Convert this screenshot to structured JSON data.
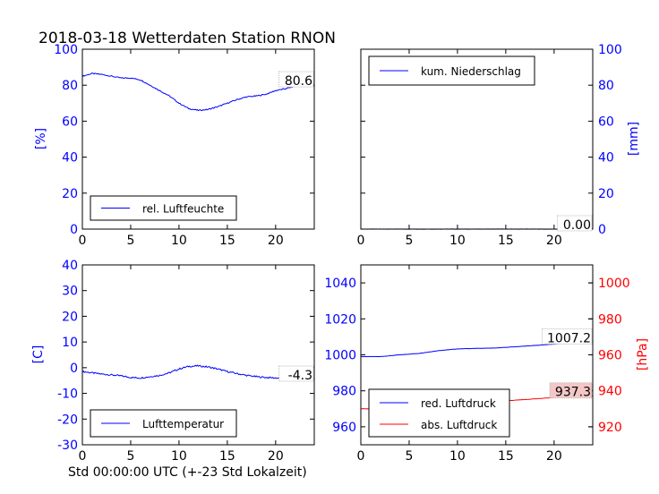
{
  "figure": {
    "title": "2018-03-18 Wetterdaten Station RNON",
    "xlabel": "Std 00:00:00 UTC (+-23 Std Lokalzeit)"
  },
  "colors": {
    "blue": "#0000ff",
    "red": "#ff0000",
    "black": "#000000"
  },
  "chart_data": [
    {
      "type": "line",
      "panel": "top-left",
      "ylabel": "[%]",
      "ylabel_color": "#0000ff",
      "xlim": [
        0,
        24
      ],
      "ylim": [
        0,
        100
      ],
      "xticks": [
        0,
        5,
        10,
        15,
        20
      ],
      "yticks": [
        0,
        20,
        40,
        60,
        80,
        100
      ],
      "ytick_color": "#0000ff",
      "legend": {
        "placement": "lower-left"
      },
      "series": [
        {
          "name": "rel. Luftfeuchte",
          "color": "#0000ff",
          "x": [
            0,
            1,
            2,
            3,
            4,
            5,
            6,
            7,
            8,
            9,
            10,
            11,
            12,
            13,
            14,
            15,
            16,
            17,
            18,
            19,
            20,
            21,
            22,
            23,
            24
          ],
          "y": [
            85,
            86.5,
            86,
            85,
            84,
            84,
            83,
            80,
            77,
            74,
            70,
            67,
            66,
            66.5,
            68,
            70,
            72,
            73.5,
            74,
            75,
            77,
            78,
            79.5,
            80.5,
            80.6
          ]
        }
      ],
      "value_label": "80.6",
      "value_label_y": 83
    },
    {
      "type": "line",
      "panel": "top-right",
      "ylabel": "[mm]",
      "ylabel_color": "#0000ff",
      "xlim": [
        0,
        24
      ],
      "ylim": [
        0,
        100
      ],
      "xticks": [
        0,
        5,
        10,
        15,
        20
      ],
      "yticks": [
        0,
        20,
        40,
        60,
        80,
        100
      ],
      "ytick_color": "#0000ff",
      "legend": {
        "placement": "upper-left"
      },
      "series": [
        {
          "name": "kum. Niederschlag",
          "color": "#0000ff",
          "x": [
            0,
            24
          ],
          "y": [
            0,
            0
          ]
        }
      ],
      "value_label": "0.00",
      "value_label_y": 3
    },
    {
      "type": "line",
      "panel": "bottom-left",
      "ylabel": "[C]",
      "ylabel_color": "#0000ff",
      "xlim": [
        0,
        24
      ],
      "ylim": [
        -30,
        40
      ],
      "xticks": [
        0,
        5,
        10,
        15,
        20
      ],
      "yticks": [
        -30,
        -20,
        -10,
        0,
        10,
        20,
        30,
        40
      ],
      "ytick_color": "#0000ff",
      "legend": {
        "placement": "lower-left"
      },
      "series": [
        {
          "name": "Lufttemperatur",
          "color": "#0000ff",
          "x": [
            0,
            1,
            2,
            3,
            4,
            5,
            6,
            7,
            8,
            9,
            10,
            11,
            12,
            13,
            14,
            15,
            16,
            17,
            18,
            19,
            20,
            21,
            22,
            23,
            24
          ],
          "y": [
            -1.5,
            -2,
            -2.5,
            -2.8,
            -3.2,
            -3.8,
            -4,
            -3.5,
            -3,
            -2,
            -0.5,
            0.5,
            0.7,
            0.3,
            -0.5,
            -1.5,
            -2.3,
            -3,
            -3.5,
            -3.8,
            -4,
            -4.1,
            -4.2,
            -4.3,
            -4.3
          ]
        }
      ],
      "value_label": "-4.3",
      "value_label_y": -2.5
    },
    {
      "type": "line",
      "panel": "bottom-right",
      "ylabel_right": "[hPa]",
      "ylabel_right_color": "#ff0000",
      "xlim": [
        0,
        24
      ],
      "ylim": [
        950,
        1050
      ],
      "ylim_right": [
        910,
        1010
      ],
      "xticks": [
        0,
        5,
        10,
        15,
        20
      ],
      "yticks": [
        960,
        980,
        1000,
        1020,
        1040
      ],
      "ytick_color": "#0000ff",
      "yticks_right": [
        920,
        940,
        960,
        980,
        1000
      ],
      "ytick_right_color": "#ff0000",
      "legend": {
        "placement": "lower-left"
      },
      "series": [
        {
          "name": "red. Luftdruck",
          "color": "#0000ff",
          "axis": "left",
          "x": [
            0,
            2,
            4,
            6,
            8,
            10,
            12,
            14,
            16,
            18,
            20,
            22,
            24
          ],
          "y": [
            999,
            999,
            1000,
            1000.8,
            1002.3,
            1003.3,
            1003.6,
            1003.8,
            1004.5,
            1005.2,
            1006,
            1006.8,
            1007.2
          ]
        },
        {
          "name": "abs. Luftdruck",
          "color": "#ff0000",
          "axis": "right",
          "x": [
            0,
            2,
            4,
            6,
            8,
            10,
            12,
            14,
            16,
            18,
            20,
            22,
            24
          ],
          "y": [
            930,
            930,
            931,
            931.5,
            932.5,
            933.5,
            934,
            934.2,
            934.8,
            935.5,
            936.3,
            937,
            937.3
          ]
        }
      ],
      "value_labels": [
        {
          "text": "1007.2",
          "axis": "left",
          "y": 1010,
          "bg": "#ffffff"
        },
        {
          "text": "937.3",
          "axis": "right",
          "y": 940,
          "bg": "#f4c7c7"
        }
      ]
    }
  ]
}
